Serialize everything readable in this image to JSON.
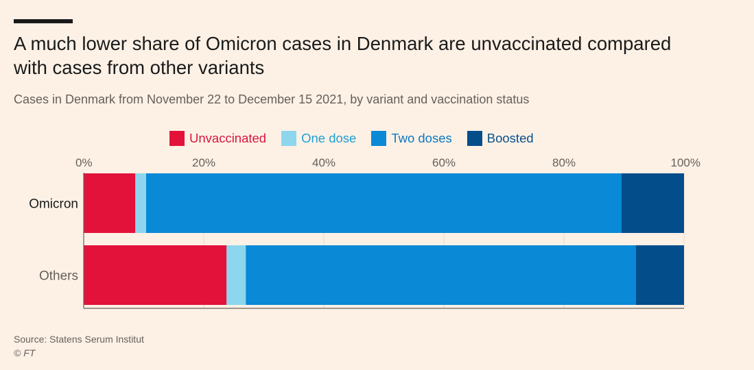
{
  "title": "A much lower share of Omicron cases in Denmark are unvaccinated compared with cases from other variants",
  "subtitle": "Cases in Denmark from November 22 to December 15 2021, by variant and vaccination status",
  "source": "Source: Statens Serum Institut",
  "credit": "© FT",
  "colors": {
    "background": "#fdf1e6",
    "gridline": "#e6d9ce",
    "axis": "#66605a"
  },
  "chart_data": {
    "type": "bar",
    "orientation": "horizontal",
    "stacked": true,
    "unit": "percent",
    "xlim": [
      0,
      100
    ],
    "x_ticks": [
      "0%",
      "20%",
      "40%",
      "60%",
      "80%",
      "100%"
    ],
    "x_tick_values": [
      0,
      20,
      40,
      60,
      80,
      100
    ],
    "grid": true,
    "legend_position": "top",
    "categories": [
      "Omicron",
      "Others"
    ],
    "category_label_colors": [
      "#1a1a1a",
      "#66605a"
    ],
    "series": [
      {
        "name": "Unvaccinated",
        "color": "#e3123b",
        "label_color": "#d6163f",
        "values": [
          8.6,
          23.8
        ]
      },
      {
        "name": "One dose",
        "color": "#8dd6ee",
        "label_color": "#1e9fd6",
        "values": [
          1.8,
          3.2
        ]
      },
      {
        "name": "Two doses",
        "color": "#0989d6",
        "label_color": "#0b78c2",
        "values": [
          79.2,
          65.0
        ]
      },
      {
        "name": "Boosted",
        "color": "#044d8b",
        "label_color": "#094f8c",
        "values": [
          10.4,
          8.0
        ]
      }
    ]
  }
}
